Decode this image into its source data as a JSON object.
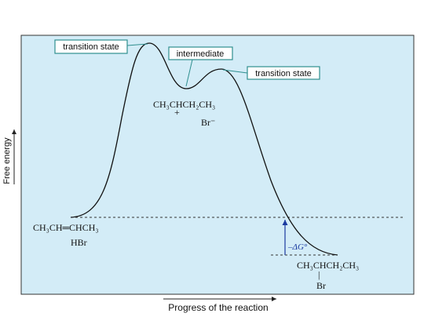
{
  "diagram": {
    "callouts": [
      "transition state",
      "intermediate",
      "transition state"
    ],
    "intermediate": {
      "formula": "CH₃CHCH₂CH₃",
      "charge": "+",
      "anion": "Br⁻"
    },
    "reactants": {
      "alkene": "CH₃CH═CHCH₃",
      "acid": "HBr"
    },
    "delta_g": "–ΔG°",
    "product": {
      "formula": "CH₃CHCH₂CH₃",
      "bond": "|",
      "substituent": "Br"
    },
    "y_axis_label": "Free energy",
    "x_axis_label": "Progress of the reaction"
  }
}
